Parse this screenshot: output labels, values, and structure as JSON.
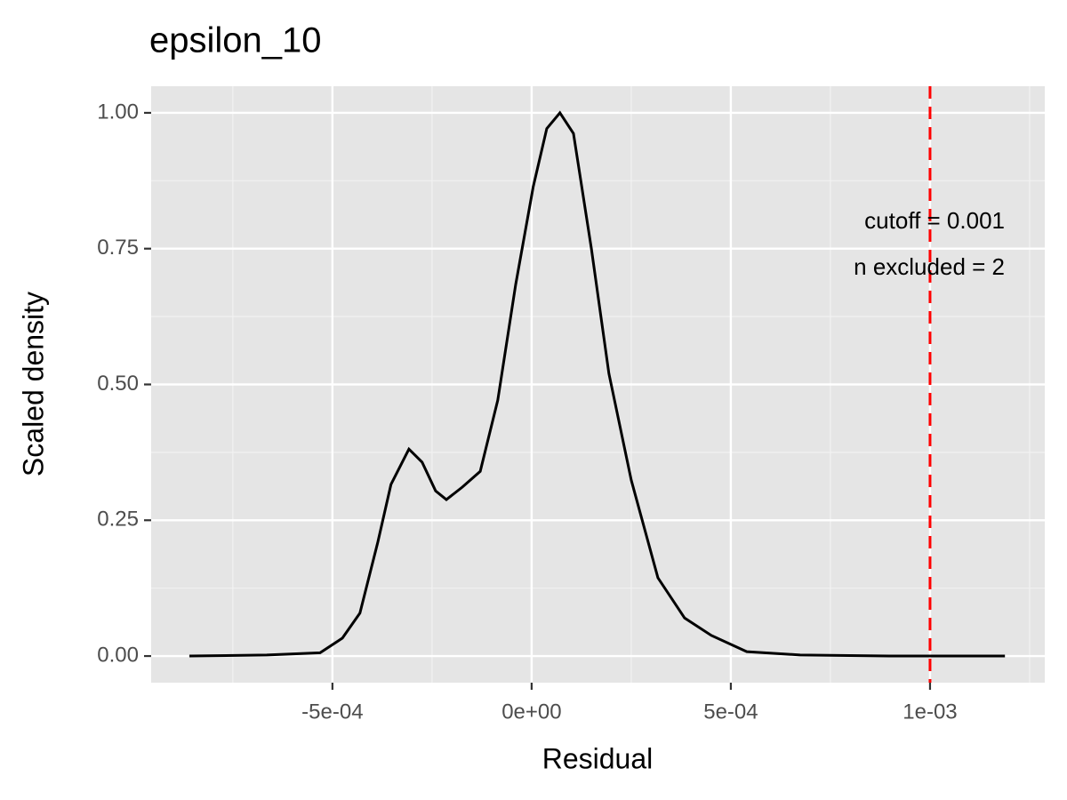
{
  "chart_data": {
    "type": "line",
    "title": "epsilon_10",
    "x_label": "Residual",
    "y_label": "Scaled density",
    "x": [
      -0.000859,
      -0.000665,
      -0.000531,
      -0.000475,
      -0.000431,
      -0.000386,
      -0.000353,
      -0.000308,
      -0.000275,
      -0.000241,
      -0.000214,
      -0.000174,
      -0.000129,
      -8.5e-05,
      -4e-05,
      4e-06,
      3.8e-05,
      7.1e-05,
      0.000105,
      0.00015,
      0.000194,
      0.00025,
      0.000317,
      0.000384,
      0.000451,
      0.00054,
      0.000674,
      0.000897,
      0.001188
    ],
    "series": [
      {
        "color": "#000000",
        "values": [
          0,
          0.002,
          0.006,
          0.033,
          0.079,
          0.21,
          0.316,
          0.381,
          0.357,
          0.304,
          0.288,
          0.311,
          0.34,
          0.471,
          0.684,
          0.864,
          0.971,
          1.0,
          0.962,
          0.75,
          0.52,
          0.324,
          0.144,
          0.07,
          0.038,
          0.008,
          0.002,
          0,
          0
        ]
      }
    ],
    "xlim": [
      -0.000955,
      0.001288
    ],
    "ylim": [
      -0.049,
      1.049
    ],
    "xticks": [
      {
        "value": -0.0005,
        "label": "-5e-04"
      },
      {
        "value": 0,
        "label": "0e+00"
      },
      {
        "value": 0.0005,
        "label": "5e-04"
      },
      {
        "value": 0.001,
        "label": "1e-03"
      }
    ],
    "yticks": [
      {
        "value": 0,
        "label": "0.00"
      },
      {
        "value": 0.25,
        "label": "0.25"
      },
      {
        "value": 0.5,
        "label": "0.50"
      },
      {
        "value": 0.75,
        "label": "0.75"
      },
      {
        "value": 1,
        "label": "1.00"
      }
    ],
    "xminor": [
      -0.00075,
      -0.00025,
      0.00025,
      0.00075,
      0.00125
    ],
    "yminor": [
      0.125,
      0.375,
      0.625,
      0.875
    ],
    "grid": true,
    "vline": {
      "x": 0.001,
      "color": "#ff0000"
    },
    "annotations": [
      "cutoff = 0.001",
      "n excluded = 2"
    ]
  }
}
